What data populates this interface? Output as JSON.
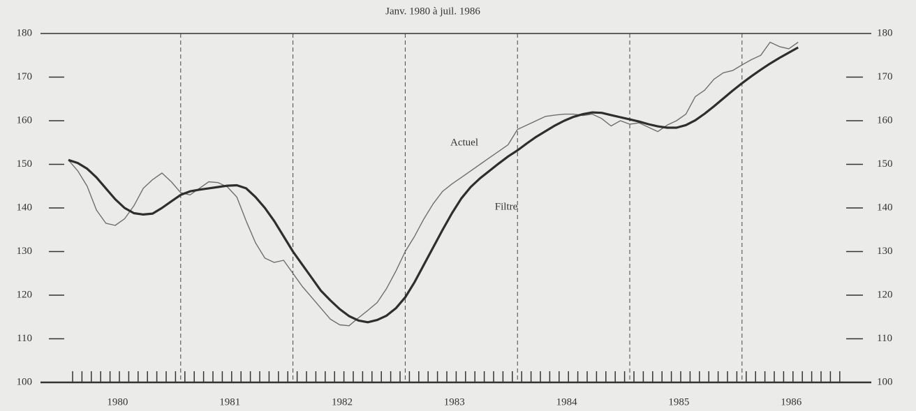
{
  "chart_data": {
    "type": "line",
    "title": "Janv. 1980 à juil. 1986",
    "categories": [
      null,
      null,
      null,
      null,
      null,
      null,
      "1980",
      null,
      null,
      null,
      null,
      null,
      null,
      null,
      null,
      null,
      null,
      null,
      "1981",
      null,
      null,
      null,
      null,
      null,
      null,
      null,
      null,
      null,
      null,
      null,
      "1982",
      null,
      null,
      null,
      null,
      null,
      null,
      null,
      null,
      null,
      null,
      null,
      "1983",
      null,
      null,
      null,
      null,
      null,
      null,
      null,
      null,
      null,
      null,
      null,
      "1984",
      null,
      null,
      null,
      null,
      null,
      null,
      null,
      null,
      null,
      null,
      null,
      "1985",
      null,
      null,
      null,
      null,
      null,
      null,
      null,
      null,
      null,
      null,
      null,
      "1986"
    ],
    "series": [
      {
        "name": "Actuel",
        "color": "#6e6e6e",
        "values": [
          151,
          148.5,
          145,
          139.5,
          136.5,
          136,
          137.5,
          140.5,
          144.5,
          146.5,
          148,
          146,
          143.5,
          143,
          144.5,
          146,
          145.8,
          144.8,
          142.5,
          137,
          132,
          128.5,
          127.5,
          128,
          125,
          122,
          119.5,
          117,
          114.5,
          113.2,
          113,
          114.8,
          116.5,
          118.3,
          121.5,
          125.5,
          130,
          133.5,
          137.5,
          141,
          143.8,
          145.5,
          147,
          148.5,
          150,
          151.5,
          153,
          154.5,
          158,
          159,
          160,
          161,
          161.3,
          161.5,
          161.5,
          161.2,
          161.5,
          160.5,
          158.8,
          160,
          159.2,
          159.5,
          158.5,
          157.5,
          159,
          160,
          161.5,
          165.5,
          167,
          169.5,
          171,
          171.5,
          172.8,
          174,
          175,
          178,
          177,
          176.5,
          178
        ]
      },
      {
        "name": "Filtre",
        "color": "#2e2e2e",
        "values": [
          151,
          150.3,
          149,
          147,
          144.5,
          142,
          140,
          138.8,
          138.5,
          138.7,
          140,
          141.5,
          143,
          143.8,
          144.2,
          144.5,
          144.8,
          145.1,
          145.2,
          144.5,
          142.5,
          140,
          137,
          133.5,
          130,
          127,
          124,
          121,
          118.8,
          116.8,
          115.2,
          114.2,
          113.8,
          114.3,
          115.3,
          117,
          119.5,
          123,
          127,
          131,
          135,
          138.8,
          142.2,
          144.8,
          146.8,
          148.5,
          150.2,
          151.8,
          153.2,
          154.8,
          156.3,
          157.6,
          158.9,
          160,
          160.9,
          161.5,
          161.9,
          161.8,
          161.3,
          160.8,
          160.3,
          159.8,
          159.2,
          158.7,
          158.4,
          158.4,
          159,
          160.1,
          161.6,
          163.3,
          165.1,
          166.9,
          168.6,
          170.2,
          171.7,
          173.1,
          174.4,
          175.6,
          176.8
        ]
      }
    ],
    "ylim": [
      100,
      180
    ],
    "yticks": [
      100,
      110,
      120,
      130,
      140,
      150,
      160,
      170,
      180
    ]
  }
}
